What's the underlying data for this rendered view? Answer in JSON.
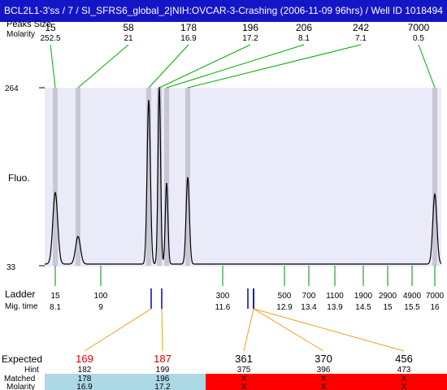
{
  "title": "BCL2L1-3'ss / 7 / SI_SFRS6_global_2|NIH:OVCAR-3-Crashing (2006-11-09 96hrs) / Well ID 1018494",
  "labels": {
    "peaks_size": "Peaks Size",
    "molarity": "Molarity",
    "fluo": "Fluo.",
    "ladder": "Ladder",
    "mig_time": "Mig. time",
    "expected": "Expected",
    "hint": "Hint",
    "matched": "Matched",
    "molarity_bottom": "Molarity"
  },
  "y_axis": {
    "max": "264",
    "min": "33"
  },
  "peaks": [
    {
      "size": "15",
      "molarity": "252.5"
    },
    {
      "size": "58",
      "molarity": "21"
    },
    {
      "size": "178",
      "molarity": "16.9"
    },
    {
      "size": "196",
      "molarity": "17.2"
    },
    {
      "size": "206",
      "molarity": "8.1"
    },
    {
      "size": "242",
      "molarity": "7.1"
    },
    {
      "size": "7000",
      "molarity": "0.5"
    }
  ],
  "ladder": [
    {
      "size": "15",
      "time": "8.1"
    },
    {
      "size": "100",
      "time": "9"
    },
    {
      "size": "300",
      "time": "11.6"
    },
    {
      "size": "500",
      "time": "12.9"
    },
    {
      "size": "700",
      "time": "13.4"
    },
    {
      "size": "1100",
      "time": "13.9"
    },
    {
      "size": "1900",
      "time": "14.5"
    },
    {
      "size": "2900",
      "time": "15"
    },
    {
      "size": "4900",
      "time": "15.5"
    },
    {
      "size": "7000",
      "time": "16"
    }
  ],
  "expected": [
    {
      "expected": "169",
      "hint": "182",
      "matched": "178",
      "molarity": "16.9",
      "status": "matched"
    },
    {
      "expected": "187",
      "hint": "199",
      "matched": "196",
      "molarity": "17.2",
      "status": "matched"
    },
    {
      "expected": "361",
      "hint": "375",
      "matched": "X",
      "molarity": "X",
      "status": "missing"
    },
    {
      "expected": "370",
      "hint": "396",
      "matched": "X",
      "molarity": "X",
      "status": "missing"
    },
    {
      "expected": "456",
      "hint": "473",
      "matched": "X",
      "molarity": "X",
      "status": "missing"
    }
  ],
  "colors": {
    "title_bg": "#1515c8",
    "plot_bg": "#eaeaf8",
    "peak_band": "#c8c8d4",
    "connector": "#f0a020",
    "ladder_tick": "#008800",
    "marker": "#0000cc",
    "expected_matched_text": "#dd0000",
    "matched_bg": "#add8e6",
    "missing_bg": "#ff0000"
  }
}
